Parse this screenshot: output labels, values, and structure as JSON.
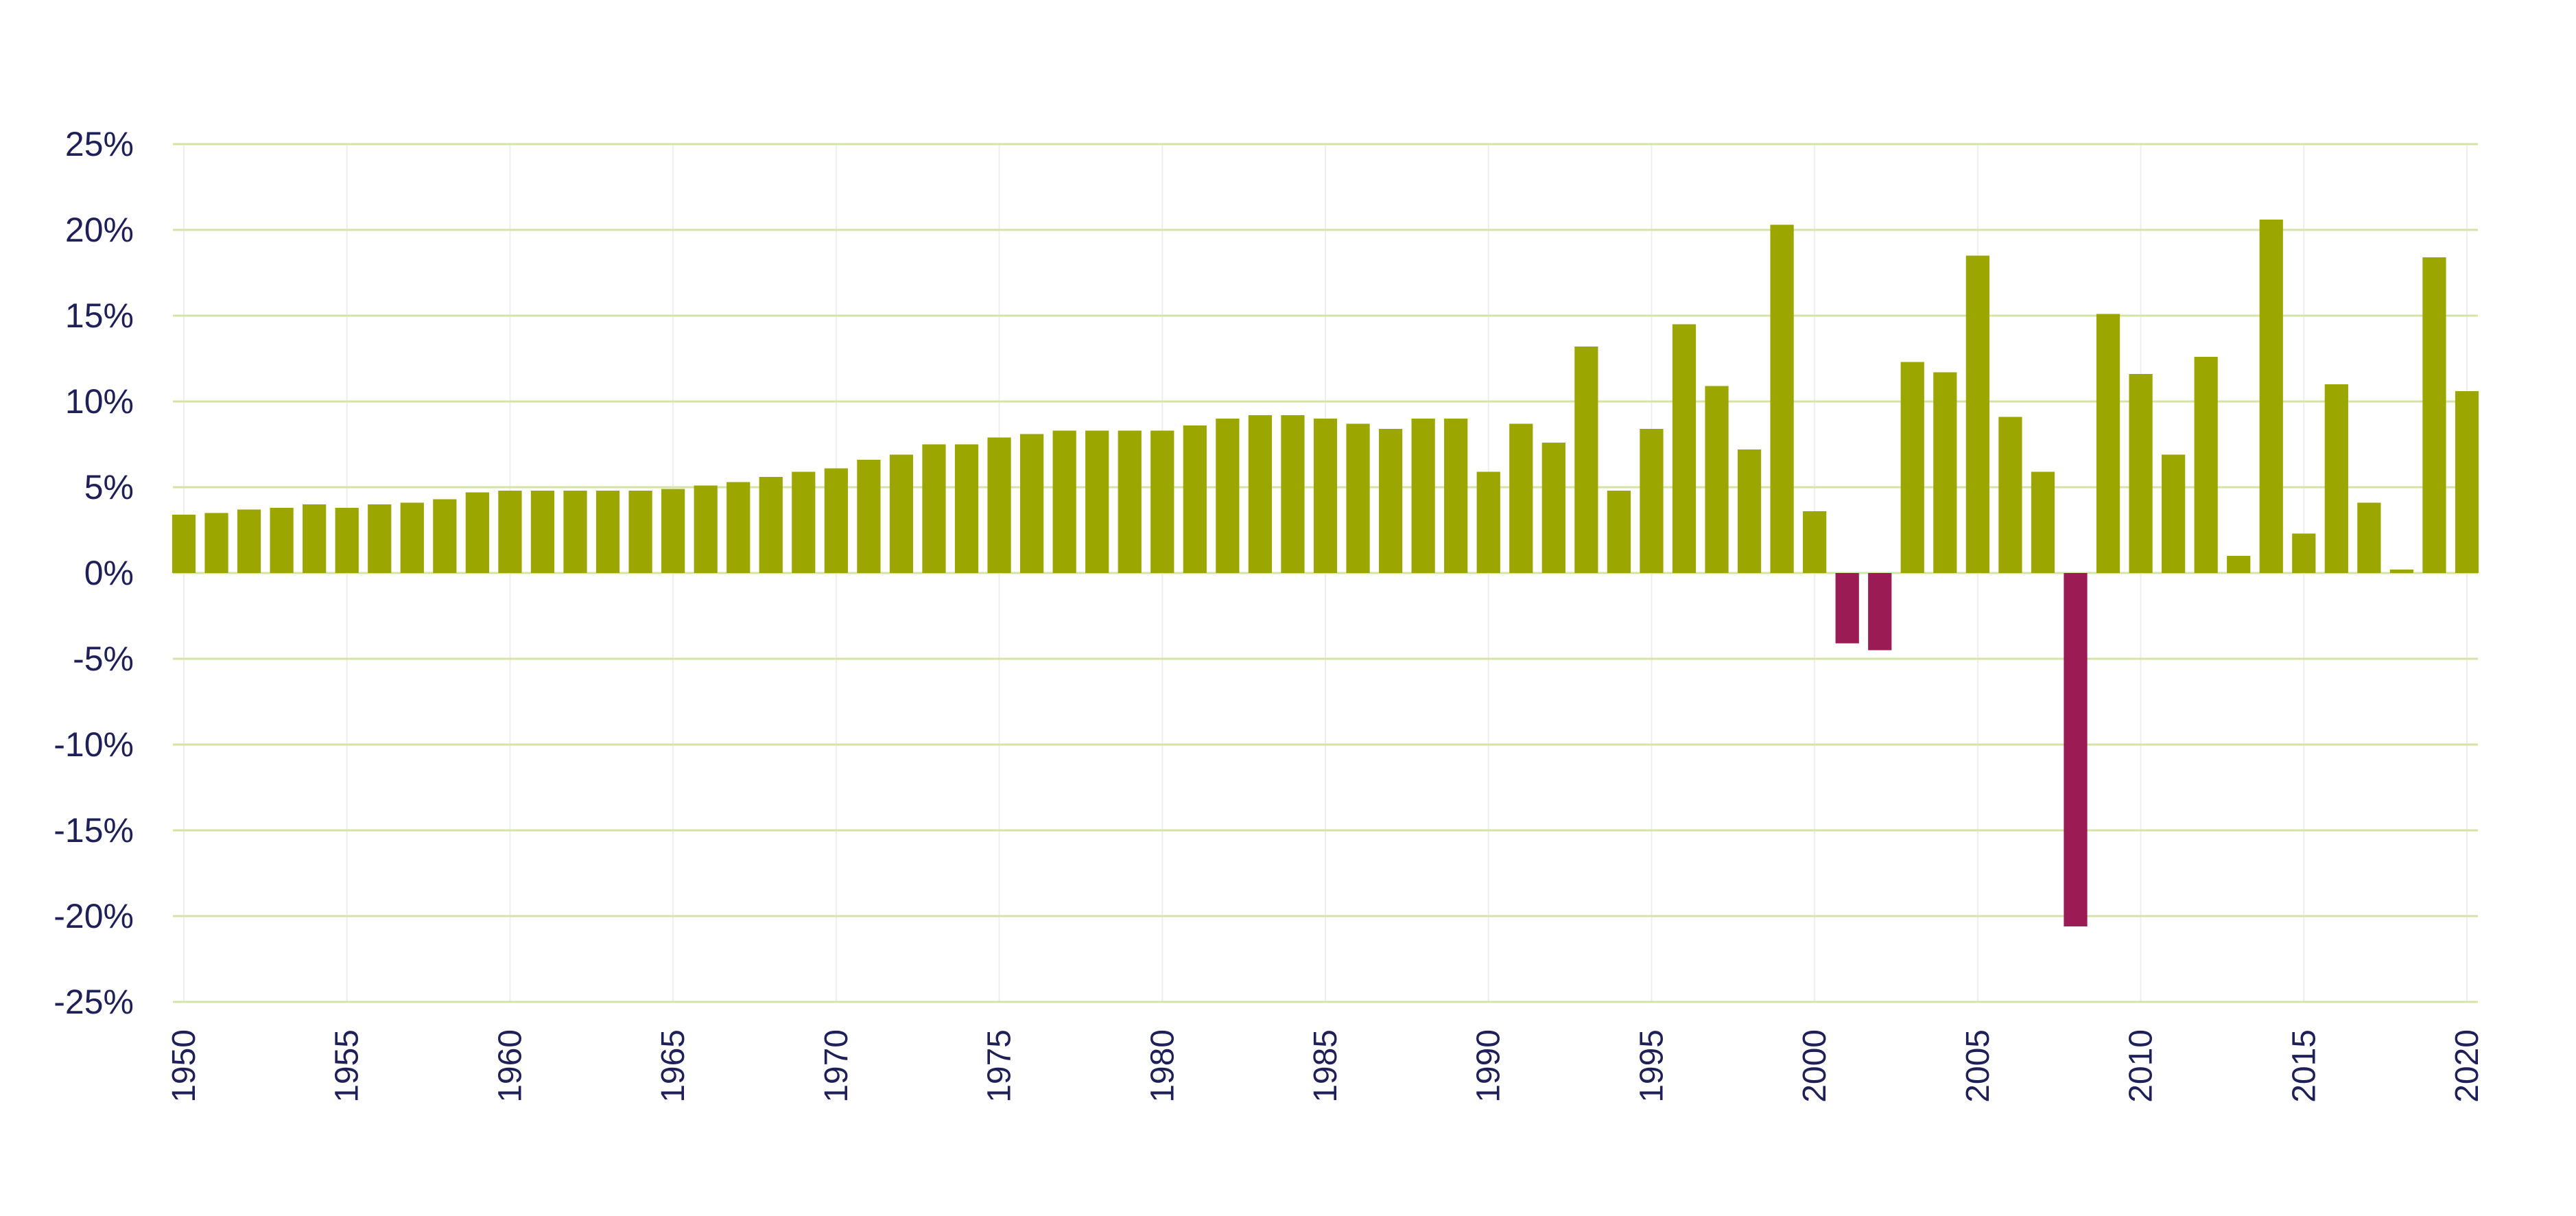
{
  "chart_data": {
    "type": "bar",
    "title": "",
    "xlabel": "",
    "ylabel": "",
    "ylim": [
      -25,
      25
    ],
    "yticks": [
      25,
      20,
      15,
      10,
      5,
      0,
      -5,
      -10,
      -15,
      -20,
      -25
    ],
    "ytick_labels": [
      "25%",
      "20%",
      "15%",
      "10%",
      "5%",
      "0%",
      "-5%",
      "-10%",
      "-15%",
      "-20%",
      "-25%"
    ],
    "xticks": [
      "1950",
      "1955",
      "1960",
      "1965",
      "1970",
      "1975",
      "1980",
      "1985",
      "1990",
      "1995",
      "2000",
      "2005",
      "2010",
      "2015",
      "2020"
    ],
    "grid": true,
    "legend": "none",
    "colors": {
      "positive": "#9ca600",
      "negative": "#9b1b55",
      "grid": "#d6e3a6",
      "vgrid": "#eeeeee",
      "text": "#1f2058"
    },
    "categories": [
      1950,
      1951,
      1952,
      1953,
      1954,
      1955,
      1956,
      1957,
      1958,
      1959,
      1960,
      1961,
      1962,
      1963,
      1964,
      1965,
      1966,
      1967,
      1968,
      1969,
      1970,
      1971,
      1972,
      1973,
      1974,
      1975,
      1976,
      1977,
      1978,
      1979,
      1980,
      1981,
      1982,
      1983,
      1984,
      1985,
      1986,
      1987,
      1988,
      1989,
      1990,
      1991,
      1992,
      1993,
      1994,
      1995,
      1996,
      1997,
      1998,
      1999,
      2000,
      2001,
      2002,
      2003,
      2004,
      2005,
      2006,
      2007,
      2008,
      2009,
      2010,
      2011,
      2012,
      2013,
      2014,
      2015,
      2016,
      2017,
      2018,
      2019,
      2020
    ],
    "values": [
      3.4,
      3.5,
      3.7,
      3.8,
      4.0,
      3.8,
      4.0,
      4.1,
      4.3,
      4.7,
      4.8,
      4.8,
      4.8,
      4.8,
      4.8,
      4.9,
      5.1,
      5.3,
      5.6,
      5.9,
      6.1,
      6.6,
      6.9,
      7.5,
      7.5,
      7.9,
      8.1,
      8.3,
      8.3,
      8.3,
      8.3,
      8.6,
      9.0,
      9.2,
      9.2,
      9.0,
      8.7,
      8.4,
      9.0,
      9.0,
      5.9,
      8.7,
      7.6,
      13.2,
      4.8,
      8.4,
      14.5,
      10.9,
      7.2,
      20.3,
      3.6,
      -4.1,
      -4.5,
      12.3,
      11.7,
      18.5,
      9.1,
      5.9,
      -20.6,
      15.1,
      11.6,
      6.9,
      12.6,
      1.0,
      20.6,
      2.3,
      11.0,
      4.1,
      0.2,
      18.4,
      10.6
    ]
  }
}
